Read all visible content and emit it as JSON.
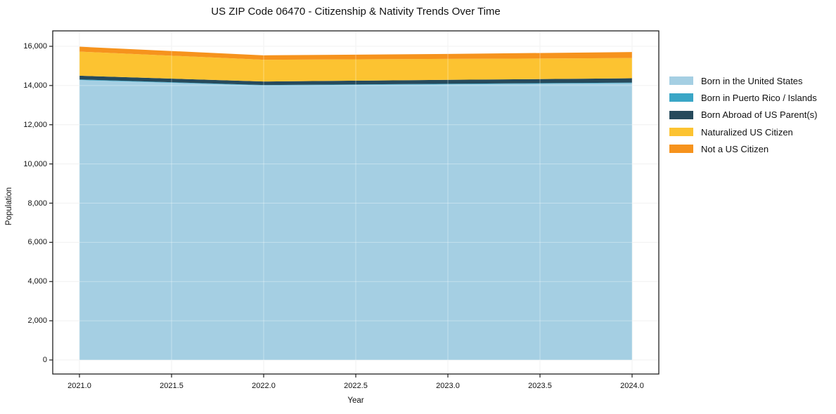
{
  "chart_data": {
    "type": "area",
    "stacked": true,
    "title": "US ZIP Code 06470 - Citizenship & Nativity Trends Over Time",
    "xlabel": "Year",
    "ylabel": "Population",
    "x": [
      2021,
      2022,
      2023,
      2024
    ],
    "series": [
      {
        "name": "Born in the United States",
        "color": "#a5cfe3",
        "values": [
          14280,
          14000,
          14060,
          14120
        ]
      },
      {
        "name": "Born in Puerto Rico / Islands",
        "color": "#3aa6c6",
        "values": [
          30,
          25,
          30,
          30
        ]
      },
      {
        "name": "Born Abroad of US Parent(s)",
        "color": "#264a5c",
        "values": [
          190,
          180,
          200,
          220
        ]
      },
      {
        "name": "Naturalized US Citizen",
        "color": "#fcc331",
        "values": [
          1230,
          1110,
          1070,
          1030
        ]
      },
      {
        "name": "Not a US Citizen",
        "color": "#f6931d",
        "values": [
          250,
          225,
          250,
          310
        ]
      }
    ],
    "totals": [
      15980,
      15540,
      15610,
      15710
    ],
    "xlim": [
      2021,
      2024
    ],
    "ylim": [
      0,
      16000
    ],
    "x_tick_values": [
      2021.0,
      2021.5,
      2022.0,
      2022.5,
      2023.0,
      2023.5,
      2024.0
    ],
    "x_tick_labels": [
      "2021.0",
      "2021.5",
      "2022.0",
      "2022.5",
      "2023.0",
      "2023.5",
      "2024.0"
    ],
    "y_tick_values": [
      0,
      2000,
      4000,
      6000,
      8000,
      10000,
      12000,
      14000,
      16000
    ],
    "y_tick_labels": [
      "0",
      "2,000",
      "4,000",
      "6,000",
      "8,000",
      "10,000",
      "12,000",
      "14,000",
      "16,000"
    ],
    "grid": true,
    "legend_position": "right",
    "colors": {
      "grid": "#ebebeb",
      "grid_overlay": "rgba(255,255,255,0.35)",
      "spine": "#1f1f1f",
      "background": "#ffffff"
    }
  }
}
